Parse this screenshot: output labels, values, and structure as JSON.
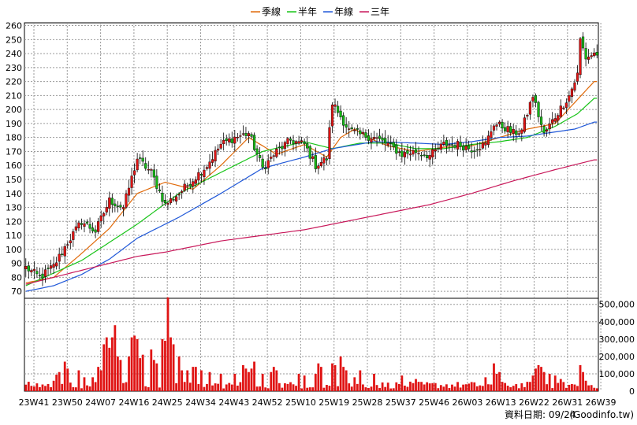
{
  "chart_data": [
    {
      "type": "candlestick",
      "title": "",
      "price_axis": {
        "ticks": [
          70,
          80,
          90,
          100,
          110,
          120,
          130,
          140,
          150,
          160,
          170,
          180,
          190,
          200,
          210,
          220,
          230,
          240,
          250,
          260
        ],
        "ylim": [
          65,
          262
        ]
      },
      "legend": {
        "placement": "top-center",
        "entries": [
          {
            "name": "季線",
            "color": "#e06a0a"
          },
          {
            "name": "半年",
            "color": "#18c418"
          },
          {
            "name": "年線",
            "color": "#2058d8"
          },
          {
            "name": "三年",
            "color": "#c8185a"
          }
        ]
      },
      "candle_colors": {
        "up": "#e01414",
        "down": "#16b816"
      },
      "x_tick_labels": [
        "23W41",
        "23W50",
        "24W07",
        "24W16",
        "24W25",
        "24W34",
        "24W43",
        "24W52",
        "25W10",
        "25W19",
        "25W28",
        "25W37",
        "25W46",
        "26W03",
        "26W13",
        "26W22",
        "26W31",
        "26W39"
      ],
      "anchors": [
        [
          0,
          87
        ],
        [
          5,
          80
        ],
        [
          10,
          88
        ],
        [
          15,
          105
        ],
        [
          20,
          120
        ],
        [
          25,
          113
        ],
        [
          30,
          135
        ],
        [
          35,
          130
        ],
        [
          40,
          165
        ],
        [
          45,
          155
        ],
        [
          50,
          132
        ],
        [
          55,
          140
        ],
        [
          60,
          150
        ],
        [
          65,
          160
        ],
        [
          70,
          175
        ],
        [
          75,
          180
        ],
        [
          80,
          183
        ],
        [
          85,
          158
        ],
        [
          90,
          170
        ],
        [
          95,
          178
        ],
        [
          100,
          175
        ],
        [
          104,
          160
        ],
        [
          108,
          165
        ],
        [
          110,
          205
        ],
        [
          113,
          195
        ],
        [
          116,
          185
        ],
        [
          120,
          182
        ],
        [
          125,
          180
        ],
        [
          130,
          175
        ],
        [
          135,
          168
        ],
        [
          140,
          170
        ],
        [
          145,
          167
        ],
        [
          150,
          175
        ],
        [
          155,
          175
        ],
        [
          160,
          172
        ],
        [
          165,
          175
        ],
        [
          168,
          190
        ],
        [
          172,
          187
        ],
        [
          175,
          183
        ],
        [
          178,
          185
        ],
        [
          182,
          210
        ],
        [
          186,
          182
        ],
        [
          190,
          195
        ],
        [
          195,
          210
        ],
        [
          198,
          225
        ],
        [
          199,
          250
        ],
        [
          201,
          237
        ],
        [
          204,
          240
        ]
      ],
      "ma_quarter_anchors": [
        [
          0,
          76
        ],
        [
          10,
          80
        ],
        [
          20,
          97
        ],
        [
          30,
          115
        ],
        [
          40,
          140
        ],
        [
          50,
          148
        ],
        [
          60,
          143
        ],
        [
          70,
          160
        ],
        [
          80,
          180
        ],
        [
          90,
          168
        ],
        [
          100,
          175
        ],
        [
          108,
          166
        ],
        [
          113,
          180
        ],
        [
          118,
          186
        ],
        [
          125,
          178
        ],
        [
          130,
          174
        ],
        [
          140,
          170
        ],
        [
          150,
          173
        ],
        [
          160,
          174
        ],
        [
          170,
          180
        ],
        [
          180,
          186
        ],
        [
          190,
          190
        ],
        [
          197,
          205
        ],
        [
          204,
          220
        ]
      ],
      "ma_half_anchors": [
        [
          0,
          74
        ],
        [
          20,
          92
        ],
        [
          40,
          118
        ],
        [
          55,
          140
        ],
        [
          70,
          155
        ],
        [
          85,
          170
        ],
        [
          100,
          177
        ],
        [
          110,
          172
        ],
        [
          120,
          176
        ],
        [
          130,
          176
        ],
        [
          140,
          172
        ],
        [
          150,
          172
        ],
        [
          160,
          175
        ],
        [
          170,
          177
        ],
        [
          180,
          180
        ],
        [
          190,
          188
        ],
        [
          198,
          197
        ],
        [
          204,
          208
        ]
      ],
      "ma_year_anchors": [
        [
          0,
          70
        ],
        [
          10,
          74
        ],
        [
          20,
          82
        ],
        [
          30,
          93
        ],
        [
          40,
          108
        ],
        [
          55,
          123
        ],
        [
          70,
          140
        ],
        [
          85,
          158
        ],
        [
          100,
          166
        ],
        [
          110,
          172
        ],
        [
          125,
          177
        ],
        [
          140,
          176
        ],
        [
          150,
          175
        ],
        [
          160,
          177
        ],
        [
          170,
          180
        ],
        [
          180,
          181
        ],
        [
          190,
          184
        ],
        [
          197,
          186
        ],
        [
          204,
          191
        ]
      ],
      "ma_3year_anchors": [
        [
          0,
          75
        ],
        [
          20,
          85
        ],
        [
          40,
          95
        ],
        [
          50,
          98
        ],
        [
          60,
          102
        ],
        [
          70,
          106
        ],
        [
          85,
          110
        ],
        [
          100,
          114
        ],
        [
          115,
          120
        ],
        [
          130,
          126
        ],
        [
          145,
          132
        ],
        [
          160,
          140
        ],
        [
          175,
          149
        ],
        [
          190,
          157
        ],
        [
          204,
          164
        ]
      ]
    },
    {
      "type": "bar",
      "title": "",
      "y_axis": {
        "ticks": [
          0,
          100000,
          200000,
          300000,
          400000,
          500000
        ],
        "tick_labels": [
          "0",
          "100,000",
          "200,000",
          "300,000",
          "400,000",
          "500,000"
        ],
        "ylim": [
          0,
          535000
        ]
      },
      "bar_color": "#e01414",
      "spikes": [
        [
          10,
          60000
        ],
        [
          11,
          95000
        ],
        [
          12,
          110000
        ],
        [
          14,
          170000
        ],
        [
          15,
          130000
        ],
        [
          19,
          120000
        ],
        [
          21,
          80000
        ],
        [
          24,
          80000
        ],
        [
          26,
          140000
        ],
        [
          27,
          120000
        ],
        [
          28,
          270000
        ],
        [
          29,
          310000
        ],
        [
          30,
          250000
        ],
        [
          31,
          310000
        ],
        [
          32,
          380000
        ],
        [
          33,
          200000
        ],
        [
          34,
          180000
        ],
        [
          37,
          200000
        ],
        [
          38,
          310000
        ],
        [
          39,
          320000
        ],
        [
          40,
          300000
        ],
        [
          41,
          190000
        ],
        [
          42,
          210000
        ],
        [
          45,
          240000
        ],
        [
          46,
          180000
        ],
        [
          47,
          160000
        ],
        [
          49,
          300000
        ],
        [
          50,
          290000
        ],
        [
          51,
          540000
        ],
        [
          52,
          310000
        ],
        [
          53,
          270000
        ],
        [
          55,
          200000
        ],
        [
          56,
          120000
        ],
        [
          58,
          120000
        ],
        [
          60,
          140000
        ],
        [
          61,
          140000
        ],
        [
          63,
          120000
        ],
        [
          66,
          110000
        ],
        [
          70,
          100000
        ],
        [
          75,
          100000
        ],
        [
          78,
          150000
        ],
        [
          79,
          130000
        ],
        [
          80,
          110000
        ],
        [
          81,
          130000
        ],
        [
          82,
          170000
        ],
        [
          85,
          100000
        ],
        [
          88,
          110000
        ],
        [
          89,
          140000
        ],
        [
          90,
          120000
        ],
        [
          98,
          100000
        ],
        [
          100,
          90000
        ],
        [
          104,
          100000
        ],
        [
          105,
          160000
        ],
        [
          106,
          140000
        ],
        [
          110,
          160000
        ],
        [
          111,
          150000
        ],
        [
          113,
          200000
        ],
        [
          114,
          140000
        ],
        [
          115,
          120000
        ],
        [
          118,
          80000
        ],
        [
          120,
          120000
        ],
        [
          125,
          100000
        ],
        [
          135,
          90000
        ],
        [
          140,
          70000
        ],
        [
          165,
          80000
        ],
        [
          168,
          160000
        ],
        [
          169,
          100000
        ],
        [
          170,
          110000
        ],
        [
          182,
          90000
        ],
        [
          183,
          130000
        ],
        [
          184,
          150000
        ],
        [
          185,
          140000
        ],
        [
          186,
          110000
        ],
        [
          188,
          100000
        ],
        [
          190,
          90000
        ],
        [
          192,
          70000
        ],
        [
          199,
          150000
        ],
        [
          200,
          110000
        ],
        [
          201,
          60000
        ]
      ]
    }
  ],
  "footer": {
    "date_label": "資料日期: 09/24",
    "source": "(Goodinfo.tw)"
  }
}
